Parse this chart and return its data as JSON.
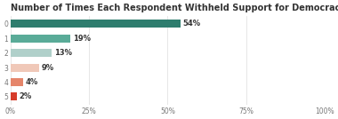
{
  "title": "Number of Times Each Respondent Withheld Support for Democracy",
  "categories": [
    0,
    1,
    2,
    3,
    4,
    5
  ],
  "values": [
    54,
    19,
    13,
    9,
    4,
    2
  ],
  "labels": [
    "54%",
    "19%",
    "13%",
    "9%",
    "4%",
    "2%"
  ],
  "bar_colors": [
    "#2e7d6e",
    "#5aab98",
    "#b0d0ca",
    "#f0c8b8",
    "#e5856a",
    "#d63c2a"
  ],
  "background_color": "#ffffff",
  "grid_color": "#dddddd",
  "text_color": "#333333",
  "title_fontsize": 7.0,
  "label_fontsize": 6.0,
  "tick_fontsize": 5.5,
  "xlim": [
    0,
    100
  ],
  "xticks": [
    0,
    25,
    50,
    75,
    100
  ],
  "xticklabels": [
    "0%",
    "25%",
    "50%",
    "75%",
    "100%"
  ]
}
